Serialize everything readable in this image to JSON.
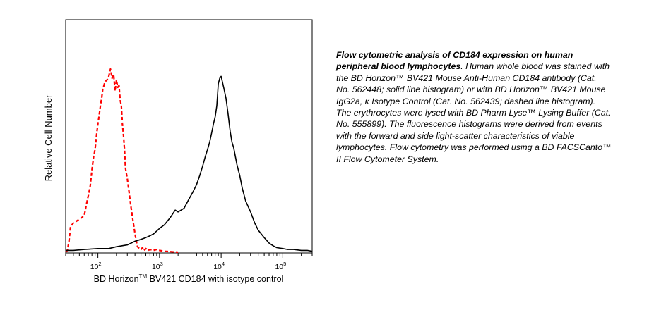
{
  "chart_data": {
    "type": "line",
    "xlabel": "BD Horizon",
    "xlabel_tm": "TM",
    "xlabel_rest": " BV421 CD184 with isotype control",
    "ylabel": "Relative Cell Number",
    "x_scale": "log",
    "xlim": [
      30,
      300000
    ],
    "ylim": [
      0,
      100
    ],
    "grid": false,
    "xticks": [
      {
        "value": 100,
        "base": "10",
        "exp": "2"
      },
      {
        "value": 1000,
        "base": "10",
        "exp": "3"
      },
      {
        "value": 10000,
        "base": "10",
        "exp": "4"
      },
      {
        "value": 100000,
        "base": "10",
        "exp": "5"
      }
    ],
    "series": [
      {
        "style": "dashed",
        "color": "#ff0000",
        "x": [
          30,
          32,
          34,
          36,
          40,
          45,
          50,
          55,
          60,
          65,
          70,
          75,
          80,
          85,
          90,
          95,
          100,
          105,
          110,
          115,
          120,
          125,
          130,
          140,
          150,
          160,
          170,
          180,
          190,
          200,
          210,
          220,
          230,
          240,
          250,
          260,
          270,
          280,
          300,
          320,
          340,
          360,
          380,
          400,
          420,
          440,
          470,
          500,
          530,
          560,
          600,
          650,
          700,
          800,
          900,
          1000,
          1200,
          1500,
          2000
        ],
        "y": [
          0,
          1,
          6,
          14,
          16,
          17,
          18,
          19,
          20,
          26,
          31,
          36,
          45,
          52,
          56,
          64,
          70,
          75,
          80,
          84,
          89,
          91,
          93,
          94,
          96,
          100,
          95,
          97,
          88,
          94,
          90,
          91,
          83,
          80,
          70,
          64,
          56,
          46,
          40,
          33,
          26,
          20,
          15,
          10,
          6,
          3,
          2,
          1.5,
          2.5,
          1,
          2,
          1,
          1.5,
          1,
          1.5,
          1,
          0.5,
          0.3,
          0
        ]
      },
      {
        "style": "solid",
        "color": "#000000",
        "x": [
          30,
          40,
          60,
          100,
          150,
          200,
          300,
          400,
          500,
          600,
          700,
          800,
          1000,
          1200,
          1500,
          1800,
          2000,
          2500,
          3000,
          3500,
          4000,
          4500,
          5000,
          5500,
          6000,
          6500,
          7000,
          7500,
          8000,
          8500,
          9000,
          9500,
          10000,
          11000,
          12000,
          13000,
          14000,
          15000,
          16000,
          18000,
          20000,
          22000,
          25000,
          30000,
          35000,
          40000,
          50000,
          60000,
          70000,
          80000,
          100000,
          120000,
          150000,
          200000,
          250000,
          300000
        ],
        "y": [
          1,
          1,
          1.5,
          2,
          2,
          3,
          4,
          6,
          7,
          8,
          9,
          10,
          13,
          15,
          19,
          23,
          22,
          24,
          29,
          33,
          37,
          42,
          47,
          52,
          56,
          60,
          65,
          70,
          74,
          80,
          92,
          95,
          96,
          90,
          84,
          75,
          66,
          60,
          57,
          48,
          42,
          35,
          28,
          22,
          16,
          12,
          8,
          5,
          3.5,
          2.5,
          2,
          1.5,
          1.5,
          1,
          1,
          0.5
        ]
      }
    ]
  },
  "caption": {
    "bold": "Flow cytometric analysis of CD184 expression on human peripheral blood lymphocytes",
    "text": ". Human whole blood was stained with the BD Horizon™ BV421 Mouse Anti-Human CD184 antibody (Cat. No. 562448; solid line histogram) or with BD Horizon™ BV421 Mouse IgG2a, κ Isotype Control (Cat. No. 562439; dashed line histogram). The erythrocytes were lysed with BD Pharm Lyse™ Lysing Buffer (Cat. No. 555899). The fluorescence histograms were derived from events with the forward and side light-scatter characteristics of viable lymphocytes. Flow cytometry was performed using a BD FACSCanto™ II Flow Cytometer System."
  }
}
